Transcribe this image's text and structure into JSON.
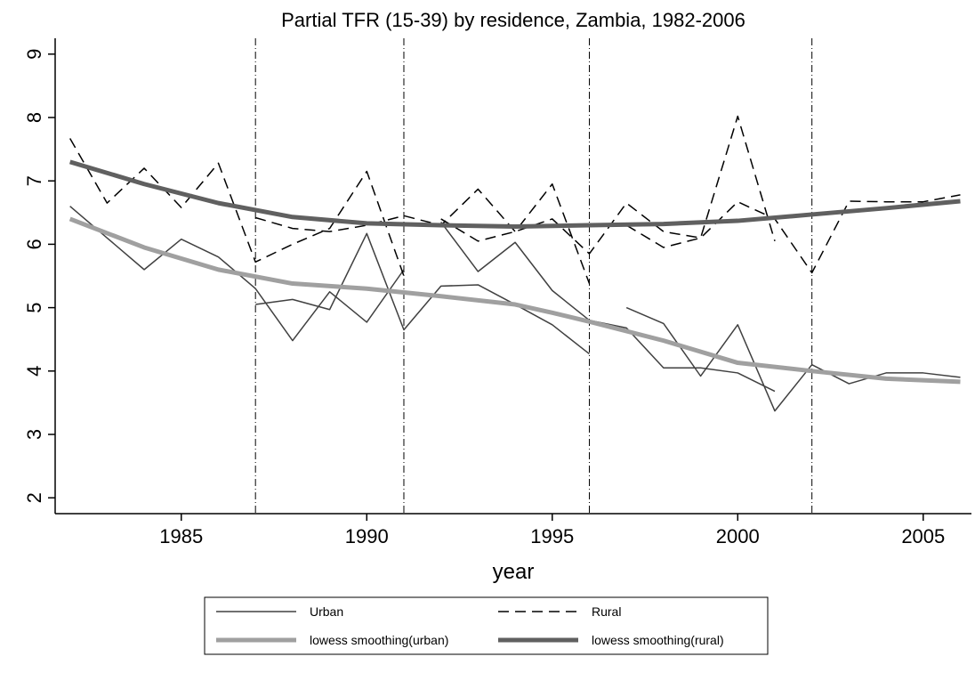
{
  "chart_data": {
    "type": "line",
    "title": "Partial TFR (15-39) by residence, Zambia, 1982-2006",
    "x_label": "year",
    "xlim": [
      1981.6,
      2006.3
    ],
    "ylim": [
      1.75,
      9.25
    ],
    "xticks": [
      1985,
      1990,
      1995,
      2000,
      2005
    ],
    "yticks": [
      2,
      3,
      4,
      5,
      6,
      7,
      8,
      9
    ],
    "reference_lines": [
      1987,
      1991,
      1996,
      2002
    ],
    "legend": "bottom",
    "series": [
      {
        "name": "Urban",
        "color": "#404040",
        "width": 1.5,
        "dash": "none",
        "x": [
          1982,
          1983,
          1984,
          1985,
          1986,
          1987,
          1988,
          1989,
          1990,
          1991,
          null,
          1987,
          1988,
          1989,
          1990,
          1991,
          1992,
          1993,
          1994,
          1995,
          1996,
          null,
          1992,
          1993,
          1994,
          1995,
          1996,
          1997,
          1998,
          1999,
          2000,
          2001,
          null,
          1997,
          1998,
          1999,
          2000,
          2001,
          2002,
          2003,
          2004,
          2005,
          2006
        ],
        "values": [
          6.6,
          6.1,
          5.6,
          6.08,
          5.8,
          5.3,
          4.48,
          5.25,
          4.77,
          5.6,
          null,
          5.05,
          5.13,
          4.97,
          6.17,
          4.65,
          5.34,
          5.36,
          5.05,
          4.73,
          4.27,
          null,
          6.35,
          5.57,
          6.03,
          5.27,
          4.8,
          4.68,
          4.05,
          4.05,
          3.97,
          3.68,
          null,
          5.0,
          4.75,
          3.92,
          4.73,
          3.37,
          4.1,
          3.8,
          3.97,
          3.97,
          3.9
        ]
      },
      {
        "name": "Rural",
        "color": "#000000",
        "width": 1.5,
        "dash": "12 7",
        "x": [
          1982,
          1983,
          1984,
          1985,
          1986,
          1987,
          1988,
          1989,
          1990,
          1991,
          null,
          1987,
          1988,
          1989,
          1990,
          1991,
          1992,
          1993,
          1994,
          1995,
          1996,
          null,
          1992,
          1993,
          1994,
          1995,
          1996,
          1997,
          1998,
          1999,
          2000,
          2001,
          null,
          1997,
          1998,
          1999,
          2000,
          2001,
          2002,
          2003,
          2004,
          2005,
          2006
        ],
        "values": [
          7.67,
          6.65,
          7.2,
          6.58,
          7.28,
          5.72,
          6.0,
          6.25,
          7.15,
          5.5,
          null,
          6.42,
          6.25,
          6.2,
          6.3,
          6.45,
          6.3,
          6.87,
          6.2,
          6.95,
          5.38,
          null,
          6.4,
          6.05,
          6.2,
          6.4,
          5.85,
          6.65,
          6.2,
          6.1,
          8.02,
          6.05,
          null,
          6.3,
          5.95,
          6.1,
          6.67,
          6.4,
          5.55,
          6.68,
          6.67,
          6.67,
          6.78
        ]
      },
      {
        "name": "lowess smoothing(urban)",
        "color": "#a0a0a0",
        "width": 5,
        "dash": "none",
        "x": [
          1982,
          1984,
          1986,
          1988,
          1990,
          1992,
          1994,
          1995,
          1996,
          1998,
          2000,
          2002,
          2004,
          2006
        ],
        "values": [
          6.4,
          5.95,
          5.6,
          5.38,
          5.3,
          5.18,
          5.05,
          4.92,
          4.78,
          4.48,
          4.13,
          4.0,
          3.88,
          3.83
        ]
      },
      {
        "name": "lowess smoothing(rural)",
        "color": "#606060",
        "width": 5,
        "dash": "none",
        "x": [
          1982,
          1984,
          1986,
          1988,
          1990,
          1992,
          1994,
          1996,
          1998,
          2000,
          2002,
          2004,
          2006
        ],
        "values": [
          7.3,
          6.95,
          6.65,
          6.43,
          6.33,
          6.3,
          6.28,
          6.3,
          6.32,
          6.37,
          6.47,
          6.57,
          6.68
        ]
      }
    ]
  }
}
